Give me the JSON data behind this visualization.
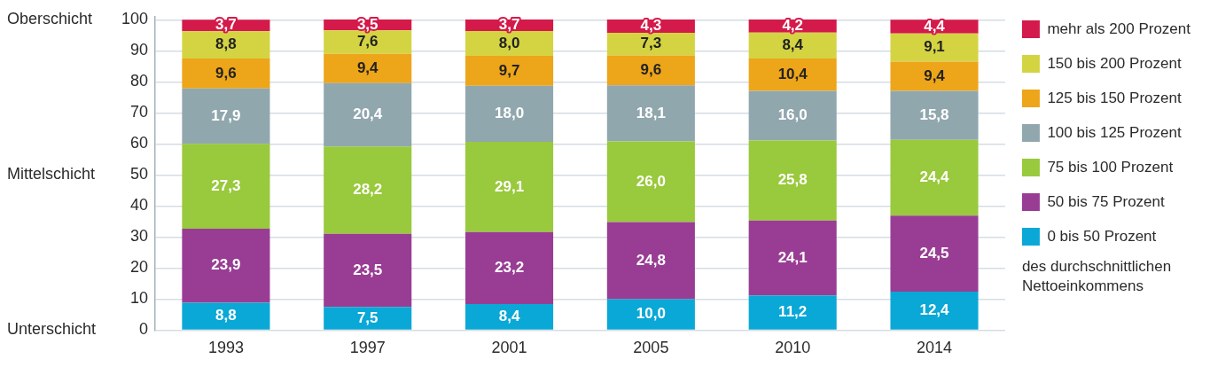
{
  "chart_data": {
    "type": "bar",
    "stacked": true,
    "categories": [
      "1993",
      "1997",
      "2001",
      "2005",
      "2010",
      "2014"
    ],
    "series": [
      {
        "name": "0 bis 50 Prozent",
        "color": "#0aa8d6",
        "values": [
          8.8,
          7.5,
          8.4,
          10.0,
          11.2,
          12.4
        ],
        "value_labels": [
          "8,8",
          "7,5",
          "8,4",
          "10,0",
          "11,2",
          "12,4"
        ]
      },
      {
        "name": "50 bis 75 Prozent",
        "color": "#993d94",
        "values": [
          23.9,
          23.5,
          23.2,
          24.8,
          24.1,
          24.5
        ],
        "value_labels": [
          "23,9",
          "23,5",
          "23,2",
          "24,8",
          "24,1",
          "24,5"
        ]
      },
      {
        "name": "75 bis 100 Prozent",
        "color": "#99c93c",
        "values": [
          27.3,
          28.2,
          29.1,
          26.0,
          25.8,
          24.4
        ],
        "value_labels": [
          "27,3",
          "28,2",
          "29,1",
          "26,0",
          "25,8",
          "24,4"
        ]
      },
      {
        "name": "100 bis 125 Prozent",
        "color": "#91a7ae",
        "values": [
          17.9,
          20.4,
          18.0,
          18.1,
          16.0,
          15.8
        ],
        "value_labels": [
          "17,9",
          "20,4",
          "18,0",
          "18,1",
          "16,0",
          "15,8"
        ]
      },
      {
        "name": "125 bis 150 Prozent",
        "color": "#eda51a",
        "values": [
          9.6,
          9.4,
          9.7,
          9.6,
          10.4,
          9.4
        ],
        "value_labels": [
          "9,6",
          "9,4",
          "9,7",
          "9,6",
          "10,4",
          "9,4"
        ]
      },
      {
        "name": "150 bis 200 Prozent",
        "color": "#d4d443",
        "values": [
          8.8,
          7.6,
          8.0,
          7.3,
          8.4,
          9.1
        ],
        "value_labels": [
          "8,8",
          "7,6",
          "8,0",
          "7,3",
          "8,4",
          "9,1"
        ]
      },
      {
        "name": "mehr als 200 Prozent",
        "color": "#d41a4a",
        "values": [
          3.7,
          3.5,
          3.7,
          4.3,
          4.2,
          4.4
        ],
        "value_labels": [
          "3,7",
          "3,5",
          "3,7",
          "4,3",
          "4,2",
          "4,4"
        ]
      }
    ],
    "ylim": [
      0,
      101
    ],
    "yticks": [
      0,
      10,
      20,
      30,
      40,
      50,
      60,
      70,
      80,
      90,
      100
    ],
    "grid": "y",
    "legend": "right",
    "annotations": [
      "Oberschicht",
      "Mittelschicht",
      "Unterschicht",
      "des durchschnittlichen Nettoeinkommens"
    ]
  }
}
